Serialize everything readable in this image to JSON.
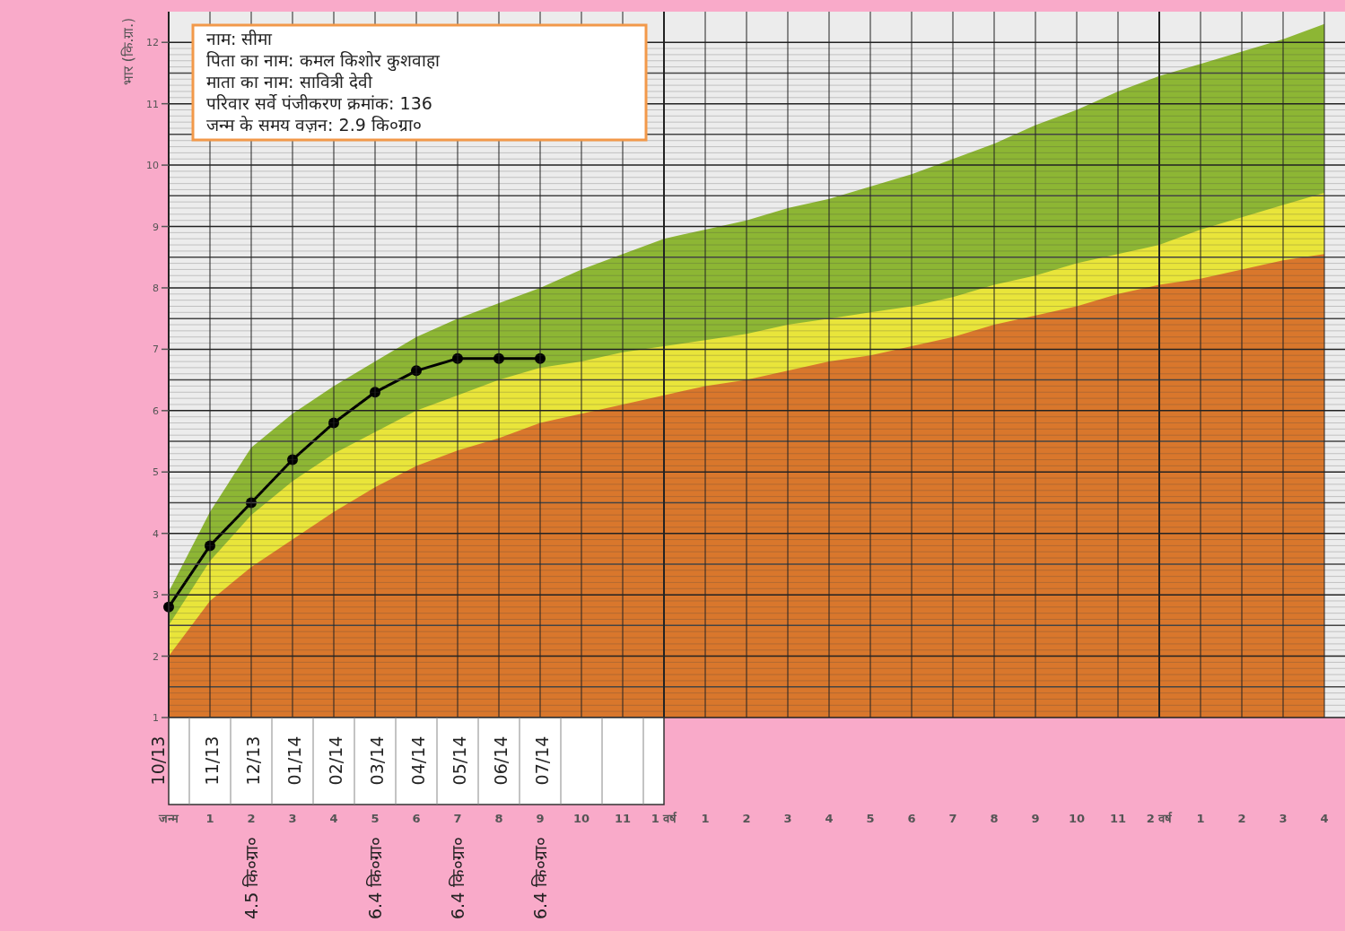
{
  "chart_data": {
    "type": "line",
    "ylabel": "भार (कि.ग्रा.)",
    "ylim": [
      1,
      12.5
    ],
    "yticks": [
      1,
      2,
      3,
      4,
      5,
      6,
      7,
      8,
      9,
      10,
      11,
      12
    ],
    "categories": [
      "जन्म",
      "1",
      "2",
      "3",
      "4",
      "5",
      "6",
      "7",
      "8",
      "9",
      "10",
      "11",
      "1 वर्ष",
      "1",
      "2",
      "3",
      "4",
      "5",
      "6",
      "7",
      "8",
      "9",
      "10",
      "11",
      "2 वर्ष",
      "1",
      "2",
      "3",
      "4"
    ],
    "grid": true,
    "series": [
      {
        "type": "area",
        "color": "#8db634",
        "values": [
          3.05,
          4.35,
          5.4,
          5.95,
          6.4,
          6.8,
          7.2,
          7.5,
          7.75,
          8.0,
          8.3,
          8.55,
          8.8,
          8.95,
          9.1,
          9.3,
          9.45,
          9.65,
          9.85,
          10.1,
          10.35,
          10.65,
          10.9,
          11.2,
          11.45,
          11.65,
          11.85,
          12.05,
          12.3
        ]
      },
      {
        "type": "area",
        "color": "#e9e53a",
        "values": [
          2.5,
          3.55,
          4.3,
          4.85,
          5.3,
          5.65,
          6.0,
          6.25,
          6.5,
          6.7,
          6.8,
          6.95,
          7.05,
          7.15,
          7.25,
          7.4,
          7.5,
          7.6,
          7.7,
          7.85,
          8.05,
          8.2,
          8.4,
          8.55,
          8.7,
          8.95,
          9.15,
          9.35,
          9.55
        ]
      },
      {
        "type": "area",
        "color": "#d9772c",
        "values": [
          2.0,
          2.9,
          3.45,
          3.9,
          4.35,
          4.75,
          5.1,
          5.35,
          5.55,
          5.8,
          5.95,
          6.1,
          6.25,
          6.4,
          6.5,
          6.65,
          6.8,
          6.9,
          7.05,
          7.2,
          7.4,
          7.55,
          7.7,
          7.9,
          8.05,
          8.15,
          8.3,
          8.45,
          8.55
        ]
      },
      {
        "color": "#000000",
        "marker": "circle",
        "values": [
          2.8,
          3.8,
          4.5,
          5.2,
          5.8,
          6.3,
          6.65,
          6.85,
          6.85,
          6.85,
          null,
          null,
          null,
          null,
          null,
          null,
          null,
          null,
          null,
          null,
          null,
          null,
          null,
          null,
          null,
          null,
          null,
          null,
          null
        ]
      }
    ],
    "annotations": [
      "नाम: सीमा",
      "पिता का नाम: कमल किशोर कुशवाहा",
      "माता का नाम: सावित्री देवी",
      "परिवार सर्वे पंजीकरण क्रमांक: 136",
      "जन्म के समय वज़न: 2.9 कि०ग्रा०",
      "10/13",
      "11/13",
      "12/13",
      "01/14",
      "02/14",
      "03/14",
      "04/14",
      "05/14",
      "06/14",
      "07/14",
      "4.5 कि०ग्रा०",
      "6.4 कि०ग्रा०",
      "6.4 कि०ग्रा०",
      "6.4 कि०ग्रा०"
    ]
  }
}
